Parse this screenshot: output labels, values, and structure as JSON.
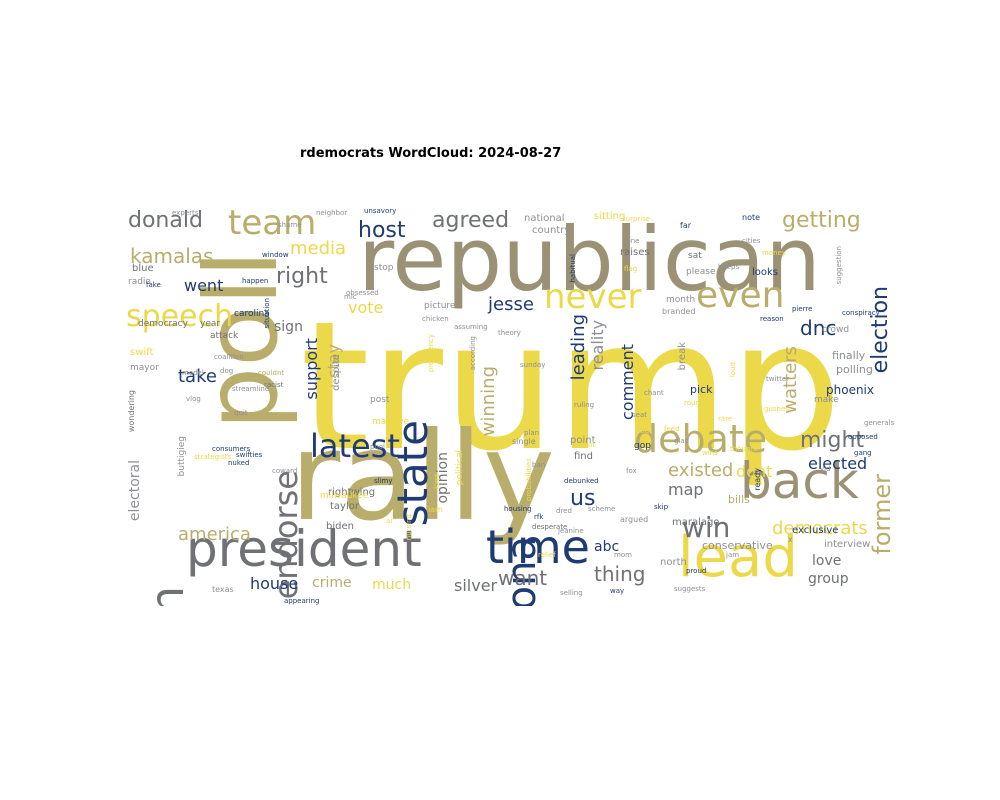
{
  "title": "rdemocrats WordCloud: 2024-08-27",
  "palette": {
    "navy": "#1f3b73",
    "slate": "#6f7175",
    "olive": "#9b9275",
    "khaki": "#b9ad6b",
    "yellow": "#ecd94a",
    "gray": "#8d8f95"
  },
  "words": [
    {
      "text": "trump",
      "c": "yellow"
    },
    {
      "text": "republican",
      "c": "olive"
    },
    {
      "text": "rally",
      "c": "khaki"
    },
    {
      "text": "poll",
      "c": "khaki"
    },
    {
      "text": "president",
      "c": "slate"
    },
    {
      "text": "campaign",
      "c": "slate"
    },
    {
      "text": "lead",
      "c": "yellow"
    },
    {
      "text": "back",
      "c": "olive"
    },
    {
      "text": "time",
      "c": "navy"
    },
    {
      "text": "arizona",
      "c": "navy"
    },
    {
      "text": "state",
      "c": "navy"
    },
    {
      "text": "debate",
      "c": "khaki"
    },
    {
      "text": "latest",
      "c": "navy"
    },
    {
      "text": "endorse",
      "c": "slate"
    },
    {
      "text": "even",
      "c": "khaki"
    },
    {
      "text": "never",
      "c": "yellow"
    },
    {
      "text": "team",
      "c": "khaki"
    },
    {
      "text": "speech",
      "c": "yellow"
    },
    {
      "text": "win",
      "c": "slate"
    },
    {
      "text": "former",
      "c": "khaki"
    },
    {
      "text": "getting",
      "c": "khaki"
    },
    {
      "text": "donald",
      "c": "slate"
    },
    {
      "text": "agreed",
      "c": "slate"
    },
    {
      "text": "kamalas",
      "c": "khaki"
    },
    {
      "text": "host",
      "c": "navy"
    },
    {
      "text": "right",
      "c": "slate"
    },
    {
      "text": "might",
      "c": "slate"
    },
    {
      "text": "america",
      "c": "khaki"
    },
    {
      "text": "election",
      "c": "navy"
    },
    {
      "text": "dnc",
      "c": "navy"
    },
    {
      "text": "media",
      "c": "yellow"
    },
    {
      "text": "want",
      "c": "slate"
    },
    {
      "text": "thing",
      "c": "slate"
    },
    {
      "text": "democrats",
      "c": "yellow"
    },
    {
      "text": "us",
      "c": "navy"
    },
    {
      "text": "take",
      "c": "navy"
    },
    {
      "text": "jesse",
      "c": "navy"
    },
    {
      "text": "watters",
      "c": "khaki"
    },
    {
      "text": "existed",
      "c": "khaki"
    },
    {
      "text": "elected",
      "c": "navy"
    },
    {
      "text": "dont",
      "c": "yellow"
    },
    {
      "text": "went",
      "c": "navy"
    },
    {
      "text": "winning",
      "c": "khaki"
    },
    {
      "text": "leading",
      "c": "navy"
    },
    {
      "text": "reality",
      "c": "gray"
    },
    {
      "text": "comment",
      "c": "navy"
    },
    {
      "text": "support",
      "c": "navy"
    },
    {
      "text": "stay",
      "c": "khaki"
    },
    {
      "text": "map",
      "c": "slate"
    },
    {
      "text": "abc",
      "c": "navy"
    },
    {
      "text": "love",
      "c": "slate"
    },
    {
      "text": "house",
      "c": "navy"
    },
    {
      "text": "crime",
      "c": "khaki"
    },
    {
      "text": "much",
      "c": "yellow"
    },
    {
      "text": "silver",
      "c": "slate"
    },
    {
      "text": "group",
      "c": "slate"
    },
    {
      "text": "opinion",
      "c": "slate"
    },
    {
      "text": "electoral",
      "c": "gray"
    },
    {
      "text": "sign",
      "c": "slate"
    },
    {
      "text": "vote",
      "c": "yellow"
    },
    {
      "text": "finally",
      "c": "gray"
    },
    {
      "text": "polling",
      "c": "gray"
    },
    {
      "text": "phoenix",
      "c": "navy"
    },
    {
      "text": "crowd",
      "c": "gray"
    },
    {
      "text": "conservative",
      "c": "gray"
    },
    {
      "text": "interview",
      "c": "gray"
    },
    {
      "text": "exclusive",
      "c": "navy"
    },
    {
      "text": "north",
      "c": "gray"
    },
    {
      "text": "despite",
      "c": "gray"
    },
    {
      "text": "taylor",
      "c": "slate"
    },
    {
      "text": "biden",
      "c": "slate"
    },
    {
      "text": "rightwing",
      "c": "slate"
    },
    {
      "text": "national",
      "c": "gray"
    },
    {
      "text": "country",
      "c": "gray"
    },
    {
      "text": "sitting",
      "c": "yellow"
    },
    {
      "text": "democracy",
      "c": "slate"
    },
    {
      "text": "year",
      "c": "slate"
    },
    {
      "text": "attack",
      "c": "slate"
    },
    {
      "text": "swift",
      "c": "yellow"
    },
    {
      "text": "mayor",
      "c": "gray"
    },
    {
      "text": "radio",
      "c": "gray"
    },
    {
      "text": "blue",
      "c": "slate"
    },
    {
      "text": "carolina",
      "c": "navy"
    },
    {
      "text": "picture",
      "c": "gray"
    },
    {
      "text": "stop",
      "c": "gray"
    },
    {
      "text": "post",
      "c": "gray"
    },
    {
      "text": "raises",
      "c": "slate"
    },
    {
      "text": "sat",
      "c": "slate"
    },
    {
      "text": "please",
      "c": "gray"
    },
    {
      "text": "looks",
      "c": "navy"
    },
    {
      "text": "month",
      "c": "gray"
    },
    {
      "text": "branded",
      "c": "gray"
    },
    {
      "text": "point",
      "c": "gray"
    },
    {
      "text": "find",
      "c": "slate"
    },
    {
      "text": "gop",
      "c": "navy"
    },
    {
      "text": "pick",
      "c": "navy"
    },
    {
      "text": "make",
      "c": "gray"
    },
    {
      "text": "bills",
      "c": "khaki"
    },
    {
      "text": "maralago",
      "c": "slate"
    },
    {
      "text": "ready",
      "c": "navy"
    },
    {
      "text": "break",
      "c": "gray"
    },
    {
      "text": "massive",
      "c": "yellow"
    },
    {
      "text": "milwaukee",
      "c": "yellow"
    },
    {
      "text": "buttigieg",
      "c": "gray"
    },
    {
      "text": "texas",
      "c": "gray"
    },
    {
      "text": "swifties",
      "c": "navy"
    },
    {
      "text": "strategists",
      "c": "yellow"
    },
    {
      "text": "political",
      "c": "yellow"
    },
    {
      "text": "single",
      "c": "gray"
    },
    {
      "text": "desperate",
      "c": "slate"
    },
    {
      "text": "argued",
      "c": "gray"
    },
    {
      "text": "fox",
      "c": "gray"
    },
    {
      "text": "coalition",
      "c": "gray"
    },
    {
      "text": "wondering",
      "c": "slate"
    },
    {
      "text": "generals",
      "c": "gray"
    },
    {
      "text": "neighbor",
      "c": "gray"
    },
    {
      "text": "unsavory",
      "c": "navy"
    },
    {
      "text": "window",
      "c": "navy"
    },
    {
      "text": "cities",
      "c": "gray"
    },
    {
      "text": "surprise",
      "c": "yellow"
    },
    {
      "text": "flag",
      "c": "yellow"
    },
    {
      "text": "habitual",
      "c": "navy"
    },
    {
      "text": "theory",
      "c": "gray"
    },
    {
      "text": "ruling",
      "c": "gray"
    },
    {
      "text": "shot",
      "c": "yellow"
    },
    {
      "text": "probabilities",
      "c": "yellow"
    },
    {
      "text": "beeps",
      "c": "gray"
    },
    {
      "text": "model",
      "c": "gray"
    },
    {
      "text": "obsessed",
      "c": "gray"
    },
    {
      "text": "chicken",
      "c": "gray"
    },
    {
      "text": "assuming",
      "c": "gray"
    },
    {
      "text": "couldnt",
      "c": "khaki"
    },
    {
      "text": "gang",
      "c": "navy"
    },
    {
      "text": "twitter",
      "c": "gray"
    },
    {
      "text": "racist",
      "c": "slate"
    },
    {
      "text": "coward",
      "c": "gray"
    },
    {
      "text": "appearing",
      "c": "navy"
    },
    {
      "text": "debunked",
      "c": "navy"
    },
    {
      "text": "housing",
      "c": "navy"
    },
    {
      "text": "jeanine",
      "c": "gray"
    },
    {
      "text": "selling",
      "c": "gray"
    },
    {
      "text": "suggests",
      "c": "gray"
    },
    {
      "text": "sunday",
      "c": "gray"
    },
    {
      "text": "quit",
      "c": "gray"
    },
    {
      "text": "mom",
      "c": "gray"
    },
    {
      "text": "rfk",
      "c": "navy"
    },
    {
      "text": "skip",
      "c": "navy"
    },
    {
      "text": "proud",
      "c": "navy"
    },
    {
      "text": "way",
      "c": "navy"
    },
    {
      "text": "far",
      "c": "navy"
    },
    {
      "text": "note",
      "c": "navy"
    },
    {
      "text": "hone",
      "c": "gray"
    },
    {
      "text": "money",
      "c": "yellow"
    },
    {
      "text": "pierre",
      "c": "navy"
    },
    {
      "text": "reason",
      "c": "navy"
    },
    {
      "text": "ai",
      "c": "yellow"
    },
    {
      "text": "tie",
      "c": "yellow"
    },
    {
      "text": "dog",
      "c": "gray"
    },
    {
      "text": "plan",
      "c": "gray"
    },
    {
      "text": "vlog",
      "c": "gray"
    },
    {
      "text": "dred",
      "c": "gray"
    },
    {
      "text": "nursing",
      "c": "yellow"
    },
    {
      "text": "seat",
      "c": "gray"
    },
    {
      "text": "feed",
      "c": "yellow"
    },
    {
      "text": "glad",
      "c": "gray"
    },
    {
      "text": "fake",
      "c": "navy"
    },
    {
      "text": "experts",
      "c": "gray"
    },
    {
      "text": "shame",
      "c": "gray"
    },
    {
      "text": "happen",
      "c": "navy"
    },
    {
      "text": "mic",
      "c": "gray"
    },
    {
      "text": "according",
      "c": "gray"
    },
    {
      "text": "pool",
      "c": "gray"
    },
    {
      "text": "streamline",
      "c": "gray"
    },
    {
      "text": "situation",
      "c": "navy"
    },
    {
      "text": "thought",
      "c": "yellow"
    },
    {
      "text": "conspiracy",
      "c": "navy"
    },
    {
      "text": "presidency",
      "c": "yellow"
    },
    {
      "text": "suggestion",
      "c": "gray"
    },
    {
      "text": "x",
      "c": "gray"
    },
    {
      "text": "jam",
      "c": "gray"
    },
    {
      "text": "vid",
      "c": "gray"
    },
    {
      "text": "lam",
      "c": "yellow"
    },
    {
      "text": "ban",
      "c": "gray"
    },
    {
      "text": "nuked",
      "c": "navy"
    },
    {
      "text": "consumers",
      "c": "navy"
    },
    {
      "text": "kind",
      "c": "yellow"
    },
    {
      "text": "loud",
      "c": "yellow"
    },
    {
      "text": "slimy",
      "c": "navy"
    },
    {
      "text": "rough",
      "c": "yellow"
    },
    {
      "text": "gushes",
      "c": "yellow"
    },
    {
      "text": "scheme",
      "c": "gray"
    },
    {
      "text": "relief",
      "c": "yellow"
    },
    {
      "text": "chant",
      "c": "gray"
    },
    {
      "text": "opposed",
      "c": "navy"
    },
    {
      "text": "rare",
      "c": "yellow"
    },
    {
      "text": "wins",
      "c": "yellow"
    }
  ]
}
